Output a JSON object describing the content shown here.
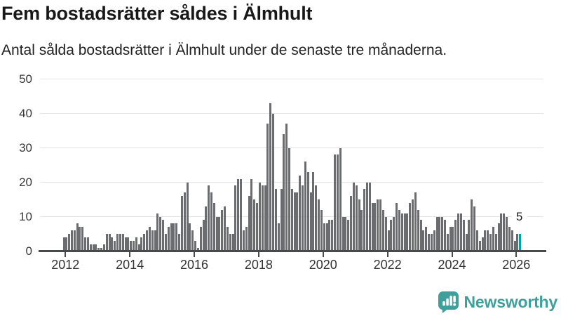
{
  "header": {
    "title": "Fem bostadsrätter såldes i Älmhult",
    "subtitle": "Antal sålda bostadsrätter i Älmhult under de senaste tre månaderna."
  },
  "annotation": {
    "last_value_label": "5"
  },
  "logo": {
    "text": "Newsworthy",
    "icon": "newsworthy-speech-bubble-bar-chart-icon"
  },
  "colors": {
    "bar_gray": "#6a6c70",
    "highlight_teal": "#00a2a2",
    "brand_teal": "#3f9f9a",
    "gridline": "#e4e4e4",
    "axis": "#47494b"
  },
  "chart_data": {
    "type": "bar",
    "title": "Fem bostadsrätter såldes i Älmhult",
    "subtitle": "Antal sålda bostadsrätter i Älmhult under de senaste tre månaderna.",
    "xlabel": "",
    "ylabel": "",
    "ylim": [
      0,
      50
    ],
    "grid": "horizontal",
    "frequency": "monthly",
    "x_start": "2011-12",
    "x_end": "2026-02",
    "x_tick_years": [
      2012,
      2014,
      2016,
      2018,
      2020,
      2022,
      2024,
      2026
    ],
    "y_ticks": [
      0,
      10,
      20,
      30,
      40,
      50
    ],
    "highlight_last_bar": true,
    "last_bar_value": 5,
    "values": [
      4,
      4,
      5,
      6,
      6,
      8,
      7,
      7,
      4,
      4,
      2,
      2,
      2,
      1,
      1,
      2,
      5,
      5,
      4,
      3,
      5,
      5,
      5,
      4,
      4,
      3,
      3,
      4,
      2,
      4,
      5,
      6,
      7,
      6,
      6,
      11,
      10,
      9,
      5,
      7,
      8,
      8,
      8,
      5,
      16,
      17,
      20,
      8,
      6,
      3,
      1,
      7,
      9,
      13,
      19,
      17,
      14,
      10,
      10,
      12,
      13,
      7,
      5,
      5,
      19,
      21,
      21,
      6,
      7,
      16,
      21,
      15,
      14,
      20,
      19,
      19,
      37,
      43,
      40,
      18,
      8,
      18,
      34,
      37,
      30,
      18,
      17,
      17,
      22,
      19,
      26,
      23,
      17,
      23,
      19,
      15,
      12,
      8,
      8,
      9,
      9,
      28,
      28,
      30,
      10,
      10,
      9,
      16,
      20,
      19,
      15,
      12,
      18,
      20,
      20,
      14,
      14,
      15,
      15,
      12,
      10,
      6,
      9,
      10,
      14,
      12,
      11,
      11,
      11,
      14,
      15,
      17,
      12,
      9,
      6,
      7,
      5,
      5,
      6,
      10,
      10,
      10,
      9,
      5,
      7,
      7,
      9,
      11,
      11,
      9,
      5,
      9,
      15,
      13,
      6,
      3,
      4,
      6,
      6,
      5,
      7,
      5,
      8,
      11,
      11,
      10,
      7,
      6,
      3,
      5,
      5
    ]
  }
}
